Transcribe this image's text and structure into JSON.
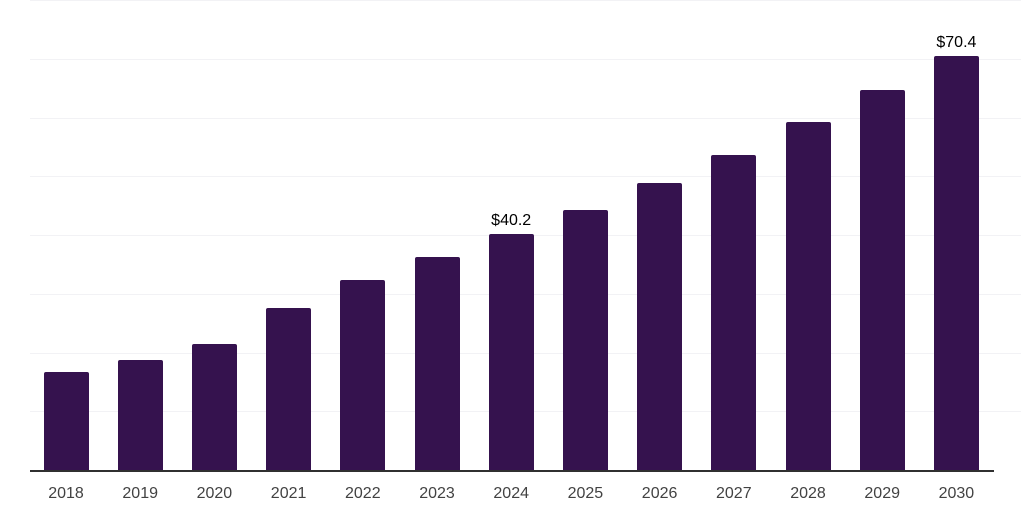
{
  "chart_data": {
    "type": "bar",
    "title": "",
    "xlabel": "",
    "ylabel": "",
    "categories": [
      "2018",
      "2019",
      "2020",
      "2021",
      "2022",
      "2023",
      "2024",
      "2025",
      "2026",
      "2027",
      "2028",
      "2029",
      "2030"
    ],
    "values": [
      16.6,
      18.7,
      21.4,
      27.5,
      32.4,
      36.2,
      40.2,
      44.2,
      48.9,
      53.7,
      59.2,
      64.6,
      70.4
    ],
    "data_labels": {
      "2024": "$40.2",
      "2030": "$70.4"
    },
    "ylim": [
      0,
      80
    ],
    "grid_step": 10,
    "grid": "horizontal-only",
    "legend": "none",
    "colors": {
      "bar": "#35124E",
      "gridline": "#F2F2F5",
      "axis_line": "#303030",
      "tick_label": "#424242",
      "value_label": "#000000",
      "background": "#FFFFFF"
    }
  }
}
